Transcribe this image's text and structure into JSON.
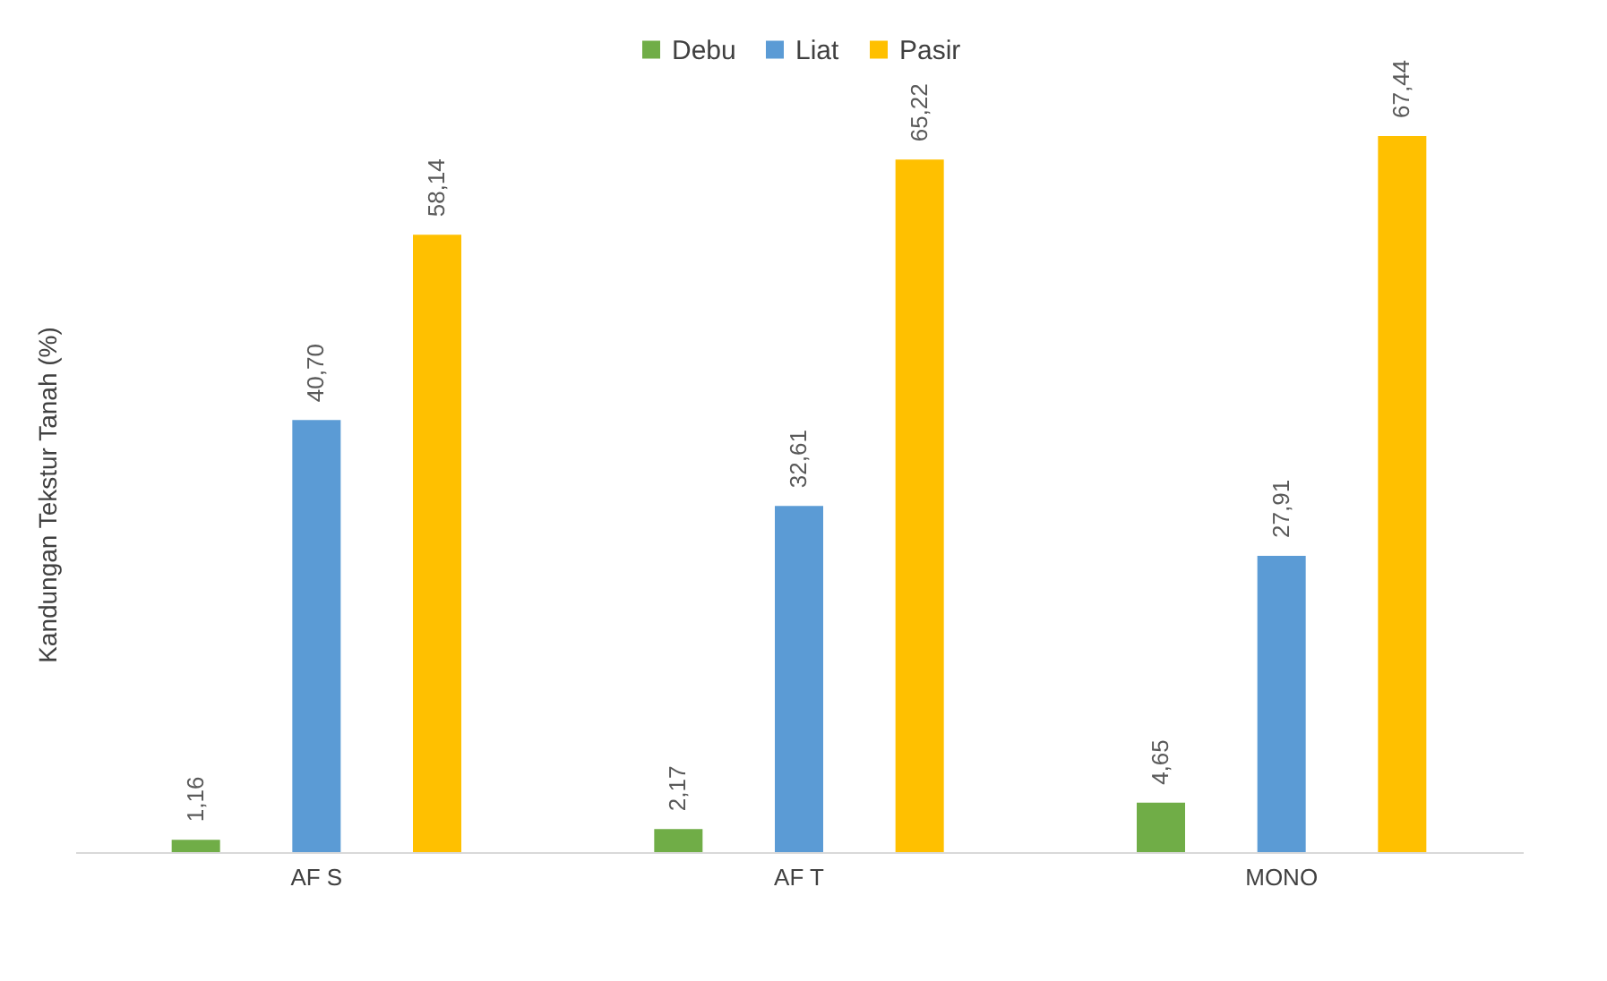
{
  "chart_data": {
    "type": "bar",
    "ylabel": "Kandungan Tekstur Tanah (%)",
    "categories": [
      "AF S",
      "AF T",
      "MONO"
    ],
    "series": [
      {
        "name": "Debu",
        "color": "#70ad47",
        "values": [
          1.16,
          2.17,
          4.65
        ],
        "value_labels": [
          "1,16",
          "2,17",
          "4,65"
        ]
      },
      {
        "name": "Liat",
        "color": "#5b9bd5",
        "values": [
          40.7,
          32.61,
          27.91
        ],
        "value_labels": [
          "40,70",
          "32,61",
          "27,91"
        ]
      },
      {
        "name": "Pasir",
        "color": "#ffc000",
        "values": [
          58.14,
          65.22,
          67.44
        ],
        "value_labels": [
          "58,14",
          "65,22",
          "67,44"
        ]
      }
    ],
    "legend": "top"
  }
}
